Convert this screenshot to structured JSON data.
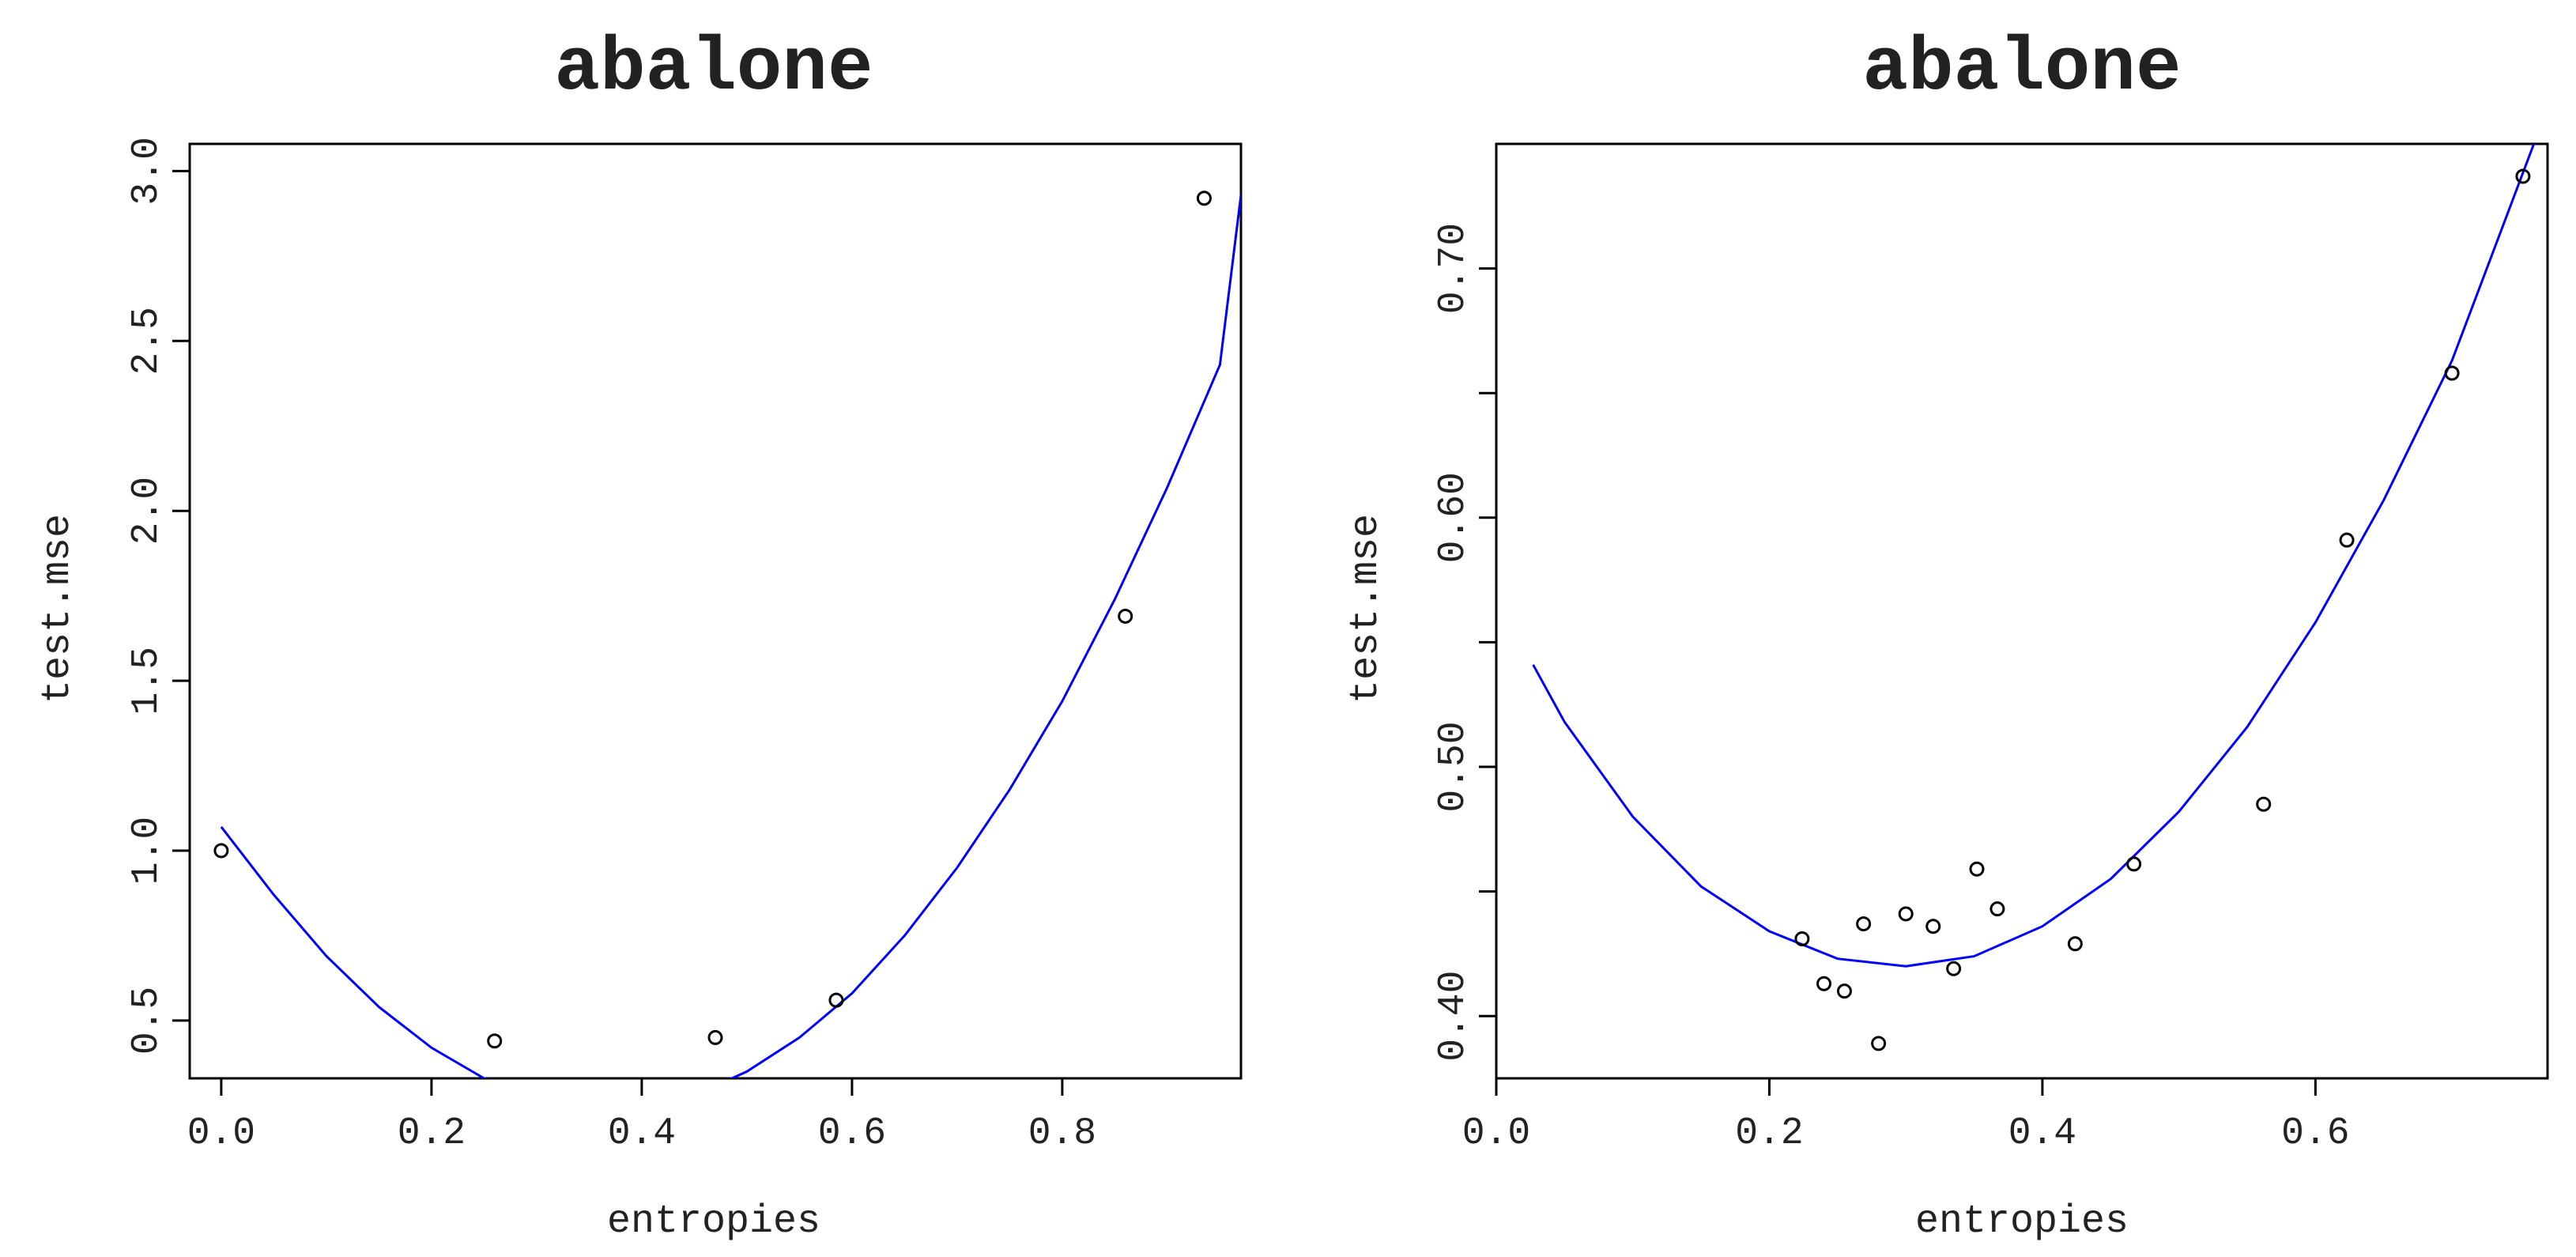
{
  "chart_data": [
    {
      "type": "scatter",
      "title": "abalone",
      "xlabel": "entropies",
      "ylabel": "test.mse",
      "xlim": [
        -0.03,
        0.97
      ],
      "ylim": [
        0.33,
        3.08
      ],
      "xticks": [
        0.0,
        0.2,
        0.4,
        0.6,
        0.8
      ],
      "xtick_labels": [
        "0.0",
        "0.2",
        "0.4",
        "0.6",
        "0.8"
      ],
      "yticks": [
        0.5,
        1.0,
        1.5,
        2.0,
        2.5,
        3.0
      ],
      "ytick_labels": [
        "0.5",
        "1.0",
        "1.5",
        "2.0",
        "2.5",
        "3.0"
      ],
      "grid": false,
      "point_color": "#000000",
      "curve_color": "#0000ff",
      "points": [
        {
          "x": 0.0,
          "y": 1.0
        },
        {
          "x": 0.26,
          "y": 0.44
        },
        {
          "x": 0.47,
          "y": 0.45
        },
        {
          "x": 0.585,
          "y": 0.56
        },
        {
          "x": 0.86,
          "y": 1.69
        },
        {
          "x": 0.935,
          "y": 2.92
        }
      ],
      "fit": {
        "x": [
          0.0,
          0.05,
          0.1,
          0.15,
          0.2,
          0.25,
          0.3,
          0.35,
          0.4,
          0.45,
          0.5,
          0.55,
          0.6,
          0.65,
          0.7,
          0.75,
          0.8,
          0.85,
          0.9,
          0.95,
          0.97
        ],
        "y": [
          1.07,
          0.87,
          0.69,
          0.54,
          0.42,
          0.33,
          0.27,
          0.24,
          0.24,
          0.28,
          0.35,
          0.45,
          0.58,
          0.75,
          0.95,
          1.18,
          1.44,
          1.74,
          2.07,
          2.43,
          2.93
        ]
      }
    },
    {
      "type": "scatter",
      "title": "abalone",
      "xlabel": "entropies",
      "ylabel": "test.mse",
      "xlim": [
        0.0,
        0.77
      ],
      "ylim": [
        0.375,
        0.75
      ],
      "xticks": [
        0.0,
        0.2,
        0.4,
        0.6
      ],
      "xtick_labels": [
        "0.0",
        "0.2",
        "0.4",
        "0.6"
      ],
      "yticks": [
        0.4,
        0.45,
        0.5,
        0.55,
        0.6,
        0.65,
        0.7
      ],
      "ytick_labels": [
        "0.40",
        "",
        "0.50",
        "",
        "0.60",
        "",
        "0.70"
      ],
      "grid": false,
      "point_color": "#000000",
      "curve_color": "#0000ff",
      "points": [
        {
          "x": 0.224,
          "y": 0.431
        },
        {
          "x": 0.24,
          "y": 0.413
        },
        {
          "x": 0.255,
          "y": 0.41
        },
        {
          "x": 0.269,
          "y": 0.437
        },
        {
          "x": 0.28,
          "y": 0.389
        },
        {
          "x": 0.3,
          "y": 0.441
        },
        {
          "x": 0.32,
          "y": 0.436
        },
        {
          "x": 0.335,
          "y": 0.419
        },
        {
          "x": 0.352,
          "y": 0.459
        },
        {
          "x": 0.367,
          "y": 0.443
        },
        {
          "x": 0.424,
          "y": 0.429
        },
        {
          "x": 0.467,
          "y": 0.461
        },
        {
          "x": 0.562,
          "y": 0.485
        },
        {
          "x": 0.623,
          "y": 0.591
        },
        {
          "x": 0.7,
          "y": 0.658
        },
        {
          "x": 0.752,
          "y": 0.737
        }
      ],
      "fit": {
        "x": [
          0.027,
          0.05,
          0.1,
          0.15,
          0.2,
          0.25,
          0.3,
          0.35,
          0.4,
          0.45,
          0.5,
          0.55,
          0.6,
          0.65,
          0.7,
          0.76
        ],
        "y": [
          0.541,
          0.518,
          0.48,
          0.452,
          0.434,
          0.423,
          0.42,
          0.424,
          0.436,
          0.455,
          0.482,
          0.516,
          0.558,
          0.607,
          0.663,
          0.75
        ]
      }
    }
  ]
}
